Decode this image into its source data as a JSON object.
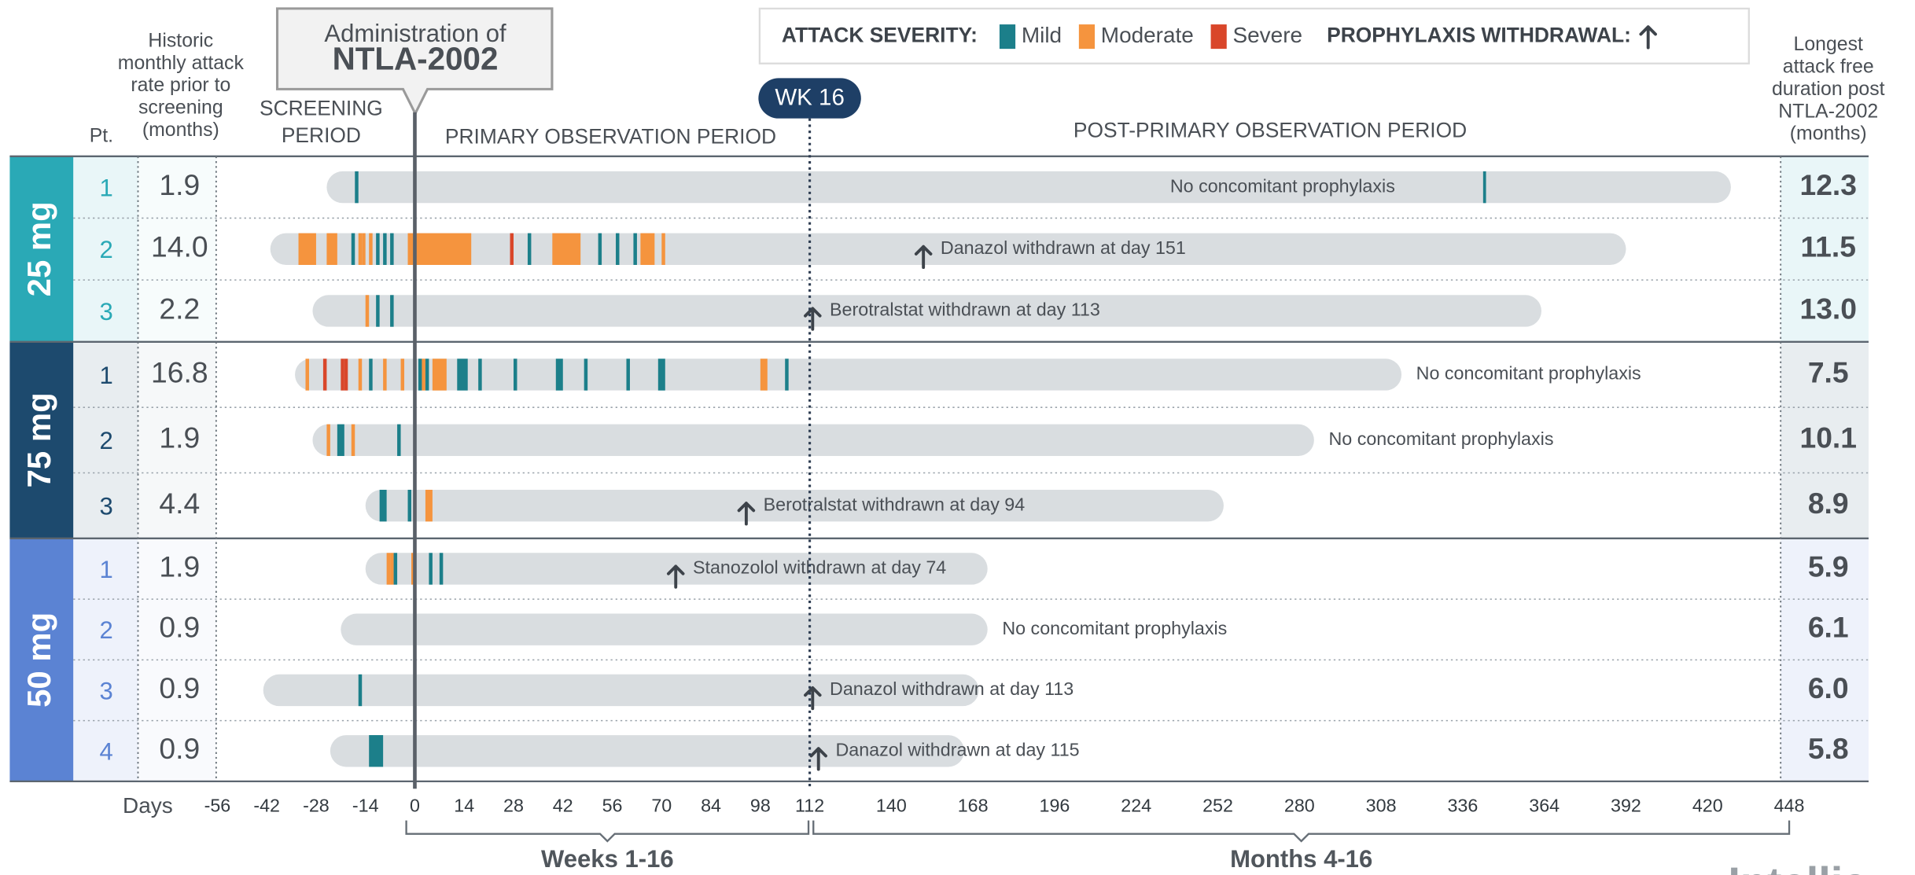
{
  "chart_data": {
    "type": "swimmer",
    "title_box": [
      "Administration of",
      "NTLA-2002"
    ],
    "legend": {
      "severity_label": "ATTACK SEVERITY:",
      "withdrawal_label": "PROPHYLAXIS WITHDRAWAL:"
    },
    "severities": [
      {
        "name": "Mild",
        "color": "#1c7f8a"
      },
      {
        "name": "Moderate",
        "color": "#f5943e"
      },
      {
        "name": "Severe",
        "color": "#d9462a"
      }
    ],
    "week16": {
      "label": "WK 16",
      "value": 112
    },
    "periods": {
      "screening": [
        "SCREENING",
        "PERIOD"
      ],
      "primary": "PRIMARY OBSERVATION PERIOD",
      "post": "POST-PRIMARY OBSERVATION PERIOD"
    },
    "headers": {
      "patient": "Pt.",
      "historic": [
        "Historic",
        "monthly attack",
        "rate prior to",
        "screening",
        "(months)"
      ],
      "longest": [
        "Longest",
        "attack free",
        "duration post",
        "NTLA-2002",
        "(months)"
      ]
    },
    "x_label": "Days",
    "xlim": [
      -56,
      448
    ],
    "xticks": [
      -56,
      -42,
      -28,
      -14,
      0,
      14,
      28,
      42,
      56,
      70,
      84,
      98,
      112,
      140,
      168,
      196,
      224,
      252,
      280,
      308,
      336,
      364,
      392,
      420,
      448
    ],
    "brackets": [
      {
        "label": "Weeks 1-16",
        "from": 0,
        "to": 112
      },
      {
        "label": "Months 4-16",
        "from": 112,
        "to": 448
      }
    ],
    "groups": [
      {
        "name": "25 mg",
        "color": "#2aa9b6",
        "patients": [
          {
            "id": 1,
            "historic_rate": "1.9",
            "start": -25,
            "end": 428,
            "attacks": [
              {
                "day": -17,
                "days": 1,
                "severity": "Mild"
              },
              {
                "day": 343,
                "days": 1,
                "severity": "Mild"
              }
            ],
            "note": "No concomitant prophylaxis",
            "longest": "12.3"
          },
          {
            "id": 2,
            "historic_rate": "14.0",
            "start": -41,
            "end": 392,
            "attacks": [
              {
                "day": -33,
                "days": 5,
                "severity": "Moderate"
              },
              {
                "day": -25,
                "days": 3,
                "severity": "Moderate"
              },
              {
                "day": -18,
                "days": 1,
                "severity": "Mild"
              },
              {
                "day": -16,
                "days": 1,
                "severity": "Moderate"
              },
              {
                "day": -15,
                "days": 1,
                "severity": "Moderate"
              },
              {
                "day": -13,
                "days": 1,
                "severity": "Moderate"
              },
              {
                "day": -11,
                "days": 1,
                "severity": "Mild"
              },
              {
                "day": -9,
                "days": 1,
                "severity": "Mild"
              },
              {
                "day": -7,
                "days": 1,
                "severity": "Mild"
              },
              {
                "day": -2,
                "days": 18,
                "severity": "Moderate"
              },
              {
                "day": 27,
                "days": 1,
                "severity": "Severe"
              },
              {
                "day": 32,
                "days": 1,
                "severity": "Mild"
              },
              {
                "day": 39,
                "days": 8,
                "severity": "Moderate"
              },
              {
                "day": 52,
                "days": 1,
                "severity": "Mild"
              },
              {
                "day": 57,
                "days": 1,
                "severity": "Mild"
              },
              {
                "day": 62,
                "days": 1,
                "severity": "Mild"
              },
              {
                "day": 64,
                "days": 4,
                "severity": "Moderate"
              },
              {
                "day": 70,
                "days": 1,
                "severity": "Moderate"
              }
            ],
            "withdrawal_day": 151,
            "note": "Danazol withdrawn at day 151",
            "longest": "11.5"
          },
          {
            "id": 3,
            "historic_rate": "2.2",
            "start": -29,
            "end": 363,
            "attacks": [
              {
                "day": -14,
                "days": 1,
                "severity": "Moderate"
              },
              {
                "day": -11,
                "days": 1,
                "severity": "Mild"
              },
              {
                "day": -7,
                "days": 1,
                "severity": "Mild"
              }
            ],
            "withdrawal_day": 113,
            "note": "Berotralstat withdrawn at day 113",
            "longest": "13.0"
          }
        ]
      },
      {
        "name": "75 mg",
        "color": "#1d4a6e",
        "patients": [
          {
            "id": 1,
            "historic_rate": "16.8",
            "start": -34,
            "end": 315,
            "attacks": [
              {
                "day": -31,
                "days": 1,
                "severity": "Moderate"
              },
              {
                "day": -26,
                "days": 1,
                "severity": "Severe"
              },
              {
                "day": -21,
                "days": 1,
                "severity": "Severe"
              },
              {
                "day": -20,
                "days": 1,
                "severity": "Severe"
              },
              {
                "day": -16,
                "days": 1,
                "severity": "Moderate"
              },
              {
                "day": -13,
                "days": 1,
                "severity": "Mild"
              },
              {
                "day": -9,
                "days": 1,
                "severity": "Moderate"
              },
              {
                "day": -4,
                "days": 1,
                "severity": "Moderate"
              },
              {
                "day": 1,
                "days": 1,
                "severity": "Mild"
              },
              {
                "day": 2,
                "days": 1,
                "severity": "Moderate"
              },
              {
                "day": 3,
                "days": 1,
                "severity": "Mild"
              },
              {
                "day": 5,
                "days": 4,
                "severity": "Moderate"
              },
              {
                "day": 12,
                "days": 3,
                "severity": "Mild"
              },
              {
                "day": 18,
                "days": 1,
                "severity": "Mild"
              },
              {
                "day": 28,
                "days": 1,
                "severity": "Mild"
              },
              {
                "day": 40,
                "days": 2,
                "severity": "Mild"
              },
              {
                "day": 48,
                "days": 1,
                "severity": "Mild"
              },
              {
                "day": 60,
                "days": 1,
                "severity": "Mild"
              },
              {
                "day": 69,
                "days": 2,
                "severity": "Mild"
              },
              {
                "day": 98,
                "days": 2,
                "severity": "Moderate"
              },
              {
                "day": 105,
                "days": 1,
                "severity": "Mild"
              }
            ],
            "note": "No concomitant prophylaxis",
            "longest": "7.5"
          },
          {
            "id": 2,
            "historic_rate": "1.9",
            "start": -29,
            "end": 285,
            "attacks": [
              {
                "day": -25,
                "days": 1,
                "severity": "Moderate"
              },
              {
                "day": -22,
                "days": 2,
                "severity": "Mild"
              },
              {
                "day": -18,
                "days": 1,
                "severity": "Moderate"
              },
              {
                "day": -5,
                "days": 1,
                "severity": "Mild"
              }
            ],
            "note": "No concomitant prophylaxis",
            "longest": "10.1"
          },
          {
            "id": 3,
            "historic_rate": "4.4",
            "start": -14,
            "end": 254,
            "attacks": [
              {
                "day": -10,
                "days": 2,
                "severity": "Mild"
              },
              {
                "day": -2,
                "days": 1,
                "severity": "Mild"
              },
              {
                "day": 3,
                "days": 2,
                "severity": "Moderate"
              }
            ],
            "withdrawal_day": 94,
            "note": "Berotralstat withdrawn at day 94",
            "longest": "8.9"
          }
        ]
      },
      {
        "name": "50 mg",
        "color": "#5b83d3",
        "patients": [
          {
            "id": 1,
            "historic_rate": "1.9",
            "start": -14,
            "end": 173,
            "attacks": [
              {
                "day": -8,
                "days": 1,
                "severity": "Moderate"
              },
              {
                "day": -7,
                "days": 1,
                "severity": "Moderate"
              },
              {
                "day": -6,
                "days": 1,
                "severity": "Mild"
              },
              {
                "day": -1,
                "days": 1,
                "severity": "Moderate"
              },
              {
                "day": 4,
                "days": 1,
                "severity": "Mild"
              },
              {
                "day": 7,
                "days": 1,
                "severity": "Mild"
              }
            ],
            "withdrawal_day": 74,
            "note": "Stanozolol withdrawn at day 74",
            "longest": "5.9"
          },
          {
            "id": 2,
            "historic_rate": "0.9",
            "start": -21,
            "end": 173,
            "attacks": [],
            "note": "No concomitant prophylaxis",
            "longest": "6.1"
          },
          {
            "id": 3,
            "historic_rate": "0.9",
            "start": -43,
            "end": 170,
            "attacks": [
              {
                "day": -16,
                "days": 1,
                "severity": "Mild"
              }
            ],
            "withdrawal_day": 113,
            "note": "Danazol withdrawn at day 113",
            "longest": "6.0"
          },
          {
            "id": 4,
            "historic_rate": "0.9",
            "start": -24,
            "end": 165,
            "attacks": [
              {
                "day": -13,
                "days": 4,
                "severity": "Mild"
              }
            ],
            "withdrawal_day": 115,
            "note": "Danazol withdrawn at day 115",
            "longest": "5.8"
          }
        ]
      }
    ],
    "logo": "Intellia"
  }
}
